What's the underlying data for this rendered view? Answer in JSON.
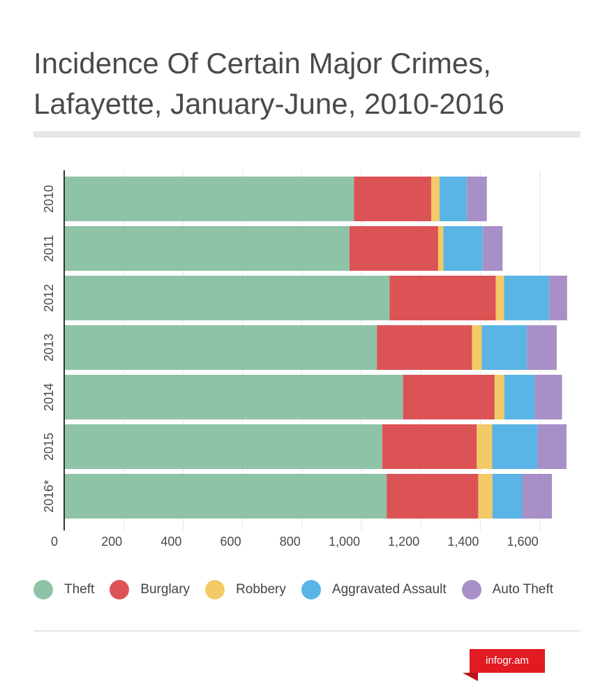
{
  "title": "Incidence Of Certain Major Crimes, Lafayette, January-June, 2010-2016",
  "brand": "infogr.am",
  "colors": {
    "theft": "#8ec3a7",
    "burglary": "#dc5356",
    "robbery": "#f2ca66",
    "aggravated_assault": "#5ab4e5",
    "auto_theft": "#a98fc7",
    "grid": "#e6e6e6",
    "axis": "#333333",
    "text": "#4a4a4a"
  },
  "legend": [
    {
      "label": "Theft",
      "color": "#8ec3a7"
    },
    {
      "label": "Burglary",
      "color": "#dc5356"
    },
    {
      "label": "Robbery",
      "color": "#f2ca66"
    },
    {
      "label": "Aggravated Assault",
      "color": "#5ab4e5"
    },
    {
      "label": "Auto Theft",
      "color": "#a98fc7"
    }
  ],
  "chart_data": {
    "type": "bar",
    "orientation": "horizontal",
    "stacked": true,
    "title": "Incidence Of Certain Major Crimes, Lafayette, January-June, 2010-2016",
    "categories": [
      "2010",
      "2011",
      "2012",
      "2013",
      "2014",
      "2015",
      "2016*"
    ],
    "series": [
      {
        "name": "Theft",
        "color": "#8ec3a7",
        "values": [
          975,
          960,
          1095,
          1052,
          1140,
          1070,
          1085
        ]
      },
      {
        "name": "Burglary",
        "color": "#dc5356",
        "values": [
          260,
          298,
          357,
          320,
          308,
          318,
          308
        ]
      },
      {
        "name": "Robbery",
        "color": "#f2ca66",
        "values": [
          28,
          18,
          28,
          33,
          33,
          52,
          48
        ]
      },
      {
        "name": "Aggravated Assault",
        "color": "#5ab4e5",
        "values": [
          92,
          132,
          152,
          152,
          102,
          153,
          100
        ]
      },
      {
        "name": "Auto Theft",
        "color": "#a98fc7",
        "values": [
          67,
          67,
          60,
          100,
          92,
          97,
          100
        ]
      }
    ],
    "x_ticks": [
      0,
      200,
      400,
      600,
      800,
      1000,
      1200,
      1400,
      1600
    ],
    "x_tick_labels": [
      "0",
      "200",
      "400",
      "600",
      "800",
      "1,000",
      "1,200",
      "1,400",
      "1,600"
    ],
    "xlim": [
      0,
      1680
    ],
    "grid": true,
    "legend_position": "bottom"
  }
}
